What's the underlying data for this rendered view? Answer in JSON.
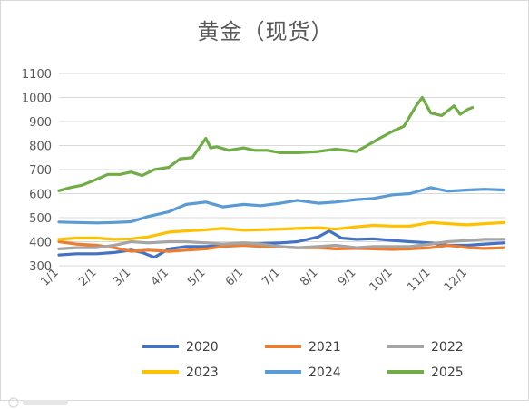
{
  "chart_data": {
    "type": "line",
    "title": "黄金（现货）",
    "xlabel": "",
    "ylabel": "",
    "ylim": [
      300,
      1100
    ],
    "y_ticks": [
      300,
      400,
      500,
      600,
      700,
      800,
      900,
      1000,
      1100
    ],
    "x_ticks": [
      "1/1",
      "2/1",
      "3/1",
      "4/1",
      "5/1",
      "6/1",
      "7/1",
      "8/1",
      "9/1",
      "10/1",
      "11/1",
      "12/1"
    ],
    "grid": "horizontal",
    "legend_position": "bottom",
    "series": [
      {
        "name": "2020",
        "color": "#4472C4",
        "x": [
          "01-01",
          "01-15",
          "02-01",
          "02-15",
          "03-01",
          "03-10",
          "03-20",
          "04-01",
          "04-15",
          "05-01",
          "05-15",
          "06-01",
          "06-15",
          "07-01",
          "07-15",
          "08-01",
          "08-10",
          "08-20",
          "09-01",
          "09-15",
          "10-01",
          "10-15",
          "11-01",
          "11-15",
          "12-01",
          "12-15",
          "12-31"
        ],
        "values": [
          345,
          350,
          350,
          355,
          365,
          355,
          335,
          370,
          380,
          380,
          385,
          390,
          392,
          395,
          400,
          420,
          445,
          415,
          410,
          412,
          405,
          400,
          395,
          385,
          385,
          390,
          395
        ]
      },
      {
        "name": "2021",
        "color": "#ED7D31",
        "x": [
          "01-01",
          "01-15",
          "02-01",
          "02-15",
          "03-01",
          "03-15",
          "04-01",
          "04-15",
          "05-01",
          "05-15",
          "06-01",
          "06-15",
          "07-01",
          "07-15",
          "08-01",
          "08-15",
          "09-01",
          "09-15",
          "10-01",
          "10-15",
          "11-01",
          "11-15",
          "12-01",
          "12-15",
          "12-31"
        ],
        "values": [
          400,
          390,
          385,
          375,
          360,
          365,
          360,
          365,
          370,
          380,
          385,
          380,
          378,
          375,
          375,
          370,
          372,
          370,
          368,
          370,
          375,
          385,
          375,
          372,
          375
        ]
      },
      {
        "name": "2022",
        "color": "#A5A5A5",
        "x": [
          "01-01",
          "01-15",
          "02-01",
          "02-15",
          "03-01",
          "03-15",
          "04-01",
          "04-15",
          "05-01",
          "05-15",
          "06-01",
          "06-15",
          "07-01",
          "07-15",
          "08-01",
          "08-15",
          "09-01",
          "09-15",
          "10-01",
          "10-15",
          "11-01",
          "11-15",
          "12-01",
          "12-15",
          "12-31"
        ],
        "values": [
          370,
          375,
          375,
          385,
          400,
          395,
          400,
          400,
          395,
          390,
          395,
          390,
          380,
          375,
          380,
          385,
          375,
          380,
          380,
          380,
          390,
          400,
          405,
          410,
          410
        ]
      },
      {
        "name": "2023",
        "color": "#FFC000",
        "x": [
          "01-01",
          "01-15",
          "02-01",
          "02-15",
          "03-01",
          "03-15",
          "04-01",
          "04-15",
          "05-01",
          "05-15",
          "06-01",
          "06-15",
          "07-01",
          "07-15",
          "08-01",
          "08-15",
          "09-01",
          "09-15",
          "10-01",
          "10-15",
          "11-01",
          "11-15",
          "12-01",
          "12-15",
          "12-31"
        ],
        "values": [
          410,
          415,
          415,
          410,
          412,
          420,
          440,
          445,
          450,
          455,
          448,
          450,
          452,
          455,
          458,
          452,
          462,
          468,
          465,
          465,
          480,
          475,
          470,
          475,
          480
        ]
      },
      {
        "name": "2024",
        "color": "#5B9BD5",
        "x": [
          "01-01",
          "01-15",
          "02-01",
          "02-15",
          "03-01",
          "03-15",
          "04-01",
          "04-15",
          "05-01",
          "05-15",
          "06-01",
          "06-15",
          "07-01",
          "07-15",
          "08-01",
          "08-15",
          "09-01",
          "09-15",
          "10-01",
          "10-15",
          "11-01",
          "11-15",
          "12-01",
          "12-15",
          "12-31"
        ],
        "values": [
          482,
          480,
          478,
          480,
          483,
          505,
          525,
          555,
          565,
          545,
          555,
          550,
          560,
          572,
          560,
          565,
          575,
          580,
          595,
          600,
          625,
          610,
          615,
          618,
          615
        ]
      },
      {
        "name": "2025",
        "color": "#70AD47",
        "x": [
          "01-01",
          "01-10",
          "01-20",
          "02-01",
          "02-10",
          "02-20",
          "03-01",
          "03-10",
          "03-20",
          "04-01",
          "04-10",
          "04-20",
          "05-01",
          "05-05",
          "05-10",
          "05-20",
          "06-01",
          "06-10",
          "06-20",
          "07-01",
          "07-15",
          "08-01",
          "08-15",
          "09-01",
          "09-10",
          "09-20",
          "10-01",
          "10-10",
          "10-20",
          "10-25",
          "11-01",
          "11-10",
          "11-20",
          "11-25",
          "12-01",
          "12-05"
        ],
        "values": [
          612,
          625,
          635,
          660,
          680,
          680,
          690,
          675,
          700,
          710,
          745,
          750,
          830,
          790,
          795,
          780,
          790,
          780,
          780,
          770,
          770,
          775,
          785,
          775,
          800,
          830,
          860,
          880,
          965,
          1000,
          935,
          925,
          965,
          930,
          950,
          958
        ]
      }
    ]
  }
}
